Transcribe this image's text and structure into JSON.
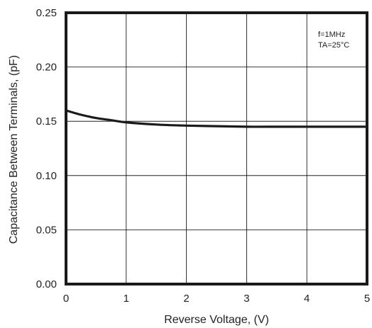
{
  "chart_data": {
    "type": "line",
    "xlabel": "Reverse Voltage, (V)",
    "ylabel": "Capacitance Between Terminals, (pF)",
    "xlim": [
      0,
      5
    ],
    "ylim": [
      0,
      0.25
    ],
    "x_ticks": [
      "0",
      "1",
      "2",
      "3",
      "4",
      "5"
    ],
    "y_ticks": [
      "0.00",
      "0.05",
      "0.10",
      "0.15",
      "0.20",
      "0.25"
    ],
    "grid": true,
    "annotations": [
      "f=1MHz",
      "TA=25°C"
    ],
    "series": [
      {
        "x": [
          0,
          0.25,
          0.5,
          0.75,
          1,
          1.5,
          2,
          2.5,
          3,
          3.5,
          4,
          4.5,
          5
        ],
        "values": [
          0.16,
          0.156,
          0.153,
          0.151,
          0.149,
          0.147,
          0.146,
          0.1455,
          0.145,
          0.145,
          0.145,
          0.145,
          0.145
        ]
      }
    ],
    "colors": {
      "line": "#1a1a1a",
      "grid": "#000000",
      "frame": "#1a1a1a"
    }
  }
}
